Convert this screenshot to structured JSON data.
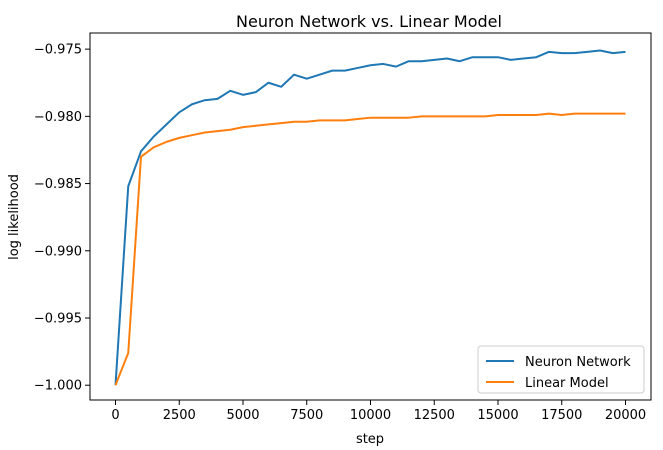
{
  "chart_data": {
    "type": "line",
    "title": "Neuron Network vs. Linear Model",
    "xlabel": "step",
    "ylabel": "log likelihood",
    "xlim": [
      -1000,
      21000
    ],
    "ylim": [
      -1.0011,
      -0.9738
    ],
    "xticks": [
      0,
      2500,
      5000,
      7500,
      10000,
      12500,
      15000,
      17500,
      20000
    ],
    "xtick_labels": [
      "0",
      "2500",
      "5000",
      "7500",
      "10000",
      "12500",
      "15000",
      "17500",
      "20000"
    ],
    "yticks": [
      -1.0,
      -0.995,
      -0.99,
      -0.985,
      -0.98,
      -0.975
    ],
    "ytick_labels": [
      "−1.000",
      "−0.995",
      "−0.990",
      "−0.985",
      "−0.980",
      "−0.975"
    ],
    "grid": false,
    "legend": "lower-right",
    "x": [
      0,
      500,
      1000,
      1500,
      2000,
      2500,
      3000,
      3500,
      4000,
      4500,
      5000,
      5500,
      6000,
      6500,
      7000,
      7500,
      8000,
      8500,
      9000,
      9500,
      10000,
      10500,
      11000,
      11500,
      12000,
      12500,
      13000,
      13500,
      14000,
      14500,
      15000,
      15500,
      16000,
      16500,
      17000,
      17500,
      18000,
      18500,
      19000,
      19500,
      20000
    ],
    "series": [
      {
        "name": "Neuron Network",
        "color": "#1f77b4",
        "values": [
          -1.0,
          -0.9852,
          -0.9826,
          -0.9815,
          -0.9806,
          -0.9797,
          -0.9791,
          -0.9788,
          -0.9787,
          -0.9781,
          -0.9784,
          -0.9782,
          -0.9775,
          -0.9778,
          -0.9769,
          -0.9772,
          -0.9769,
          -0.9766,
          -0.9766,
          -0.9764,
          -0.9762,
          -0.9761,
          -0.9763,
          -0.9759,
          -0.9759,
          -0.9758,
          -0.9757,
          -0.9759,
          -0.9756,
          -0.9756,
          -0.9756,
          -0.9758,
          -0.9757,
          -0.9756,
          -0.9752,
          -0.9753,
          -0.9753,
          -0.9752,
          -0.9751,
          -0.9753,
          -0.9752
        ]
      },
      {
        "name": "Linear Model",
        "color": "#ff7f0e",
        "values": [
          -1.0,
          -0.9976,
          -0.983,
          -0.9823,
          -0.9819,
          -0.9816,
          -0.9814,
          -0.9812,
          -0.9811,
          -0.981,
          -0.9808,
          -0.9807,
          -0.9806,
          -0.9805,
          -0.9804,
          -0.9804,
          -0.9803,
          -0.9803,
          -0.9803,
          -0.9802,
          -0.9801,
          -0.9801,
          -0.9801,
          -0.9801,
          -0.98,
          -0.98,
          -0.98,
          -0.98,
          -0.98,
          -0.98,
          -0.9799,
          -0.9799,
          -0.9799,
          -0.9799,
          -0.9798,
          -0.9799,
          -0.9798,
          -0.9798,
          -0.9798,
          -0.9798,
          -0.9798
        ]
      }
    ]
  }
}
